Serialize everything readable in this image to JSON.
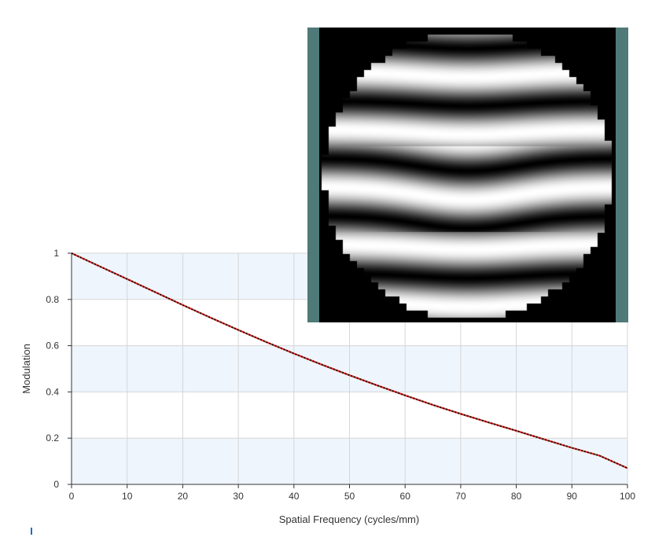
{
  "chart_data": {
    "type": "line",
    "xlabel": "Spatial Frequency (cycles/mm)",
    "ylabel": "Modulation",
    "xlim": [
      0,
      100
    ],
    "ylim": [
      0,
      1
    ],
    "x_ticks": [
      "0",
      "10",
      "20",
      "30",
      "40",
      "50",
      "60",
      "70",
      "80",
      "90",
      "100"
    ],
    "y_ticks": [
      "0",
      "0.2",
      "0.4",
      "0.6",
      "0.8",
      "1"
    ],
    "grid": true,
    "series": [
      {
        "color": "#e8312a",
        "style": "solid",
        "x": [
          0,
          5,
          10,
          15,
          20,
          25,
          30,
          35,
          40,
          45,
          50,
          55,
          60,
          65,
          70,
          75,
          80,
          85,
          90,
          95,
          100
        ],
        "y": [
          1.0,
          0.944,
          0.888,
          0.832,
          0.776,
          0.721,
          0.668,
          0.616,
          0.566,
          0.518,
          0.472,
          0.428,
          0.385,
          0.344,
          0.305,
          0.268,
          0.232,
          0.195,
          0.158,
          0.124,
          0.07
        ]
      },
      {
        "color": "#111111",
        "style": "dotted",
        "x": [
          0,
          5,
          10,
          15,
          20,
          25,
          30,
          35,
          40,
          45,
          50,
          55,
          60,
          65,
          70,
          75,
          80,
          85,
          90,
          95,
          100
        ],
        "y": [
          1.0,
          0.944,
          0.888,
          0.832,
          0.776,
          0.721,
          0.668,
          0.616,
          0.566,
          0.518,
          0.472,
          0.428,
          0.385,
          0.344,
          0.305,
          0.268,
          0.232,
          0.195,
          0.158,
          0.124,
          0.07
        ]
      }
    ],
    "inset_image": "interferogram",
    "band_color": "#eef5fd",
    "grid_color": "#d6d6d6"
  }
}
